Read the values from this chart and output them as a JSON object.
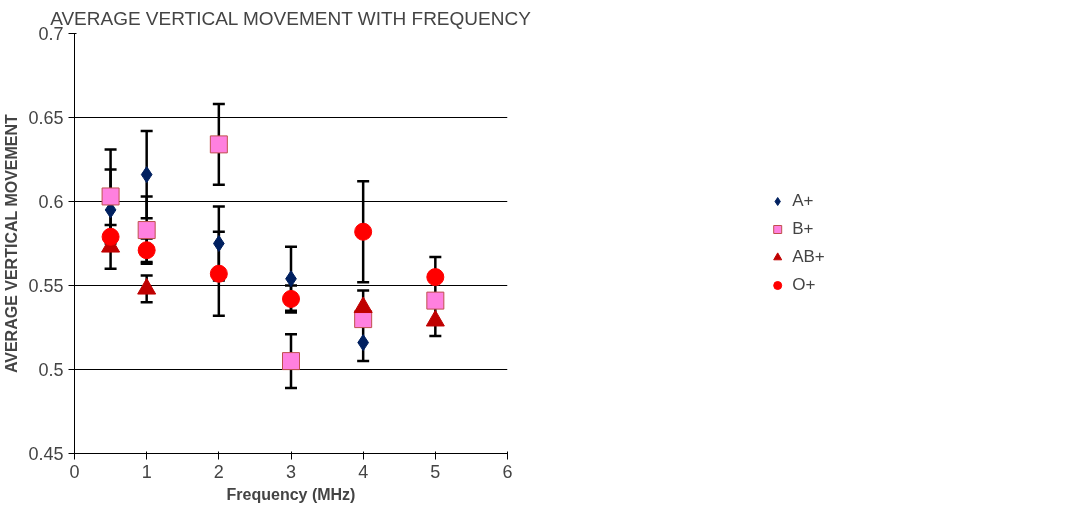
{
  "chart_data": {
    "type": "scatter",
    "title": "AVERAGE VERTICAL MOVEMENT WITH FREQUENCY",
    "xlabel": "Frequency (MHz)",
    "ylabel": "AVERAGE VERTICAL MOVEMENT",
    "xlim": [
      0,
      6
    ],
    "xticks": [
      0,
      1,
      2,
      3,
      4,
      5,
      6
    ],
    "ylim": [
      0.45,
      0.7
    ],
    "yticks": [
      0.45,
      0.5,
      0.55,
      0.6,
      0.65,
      0.7
    ],
    "grid": "y",
    "legend": "right",
    "series": [
      {
        "name": "A+",
        "color": "#002060",
        "marker": "diamond",
        "x": [
          0.5,
          1,
          2,
          3,
          4
        ],
        "values": [
          0.595,
          0.616,
          0.575,
          0.554,
          0.516
        ],
        "errors": [
          0.024,
          0.026,
          0.022,
          0.019,
          0.011
        ]
      },
      {
        "name": "B+",
        "color": "#ff80df",
        "marker": "square",
        "x": [
          0.5,
          1,
          2,
          3,
          4,
          5
        ],
        "values": [
          0.603,
          0.583,
          0.634,
          0.505,
          0.53,
          0.541
        ],
        "errors": [
          0.028,
          0.02,
          0.024,
          0.016,
          null,
          null
        ]
      },
      {
        "name": "AB+",
        "color": "#c00000",
        "marker": "triangle",
        "x": [
          0.5,
          1,
          4,
          5
        ],
        "values": [
          0.573,
          0.548,
          0.537,
          0.529
        ],
        "errors": [
          0.013,
          0.008,
          0.01,
          0.009
        ]
      },
      {
        "name": "O+",
        "color": "#ff0000",
        "marker": "circle",
        "x": [
          0.5,
          1,
          2,
          3,
          4,
          5
        ],
        "values": [
          0.579,
          0.571,
          0.557,
          0.542,
          0.582,
          0.555
        ],
        "errors": [
          null,
          0.007,
          0.025,
          0.008,
          0.03,
          0.012
        ]
      }
    ]
  }
}
